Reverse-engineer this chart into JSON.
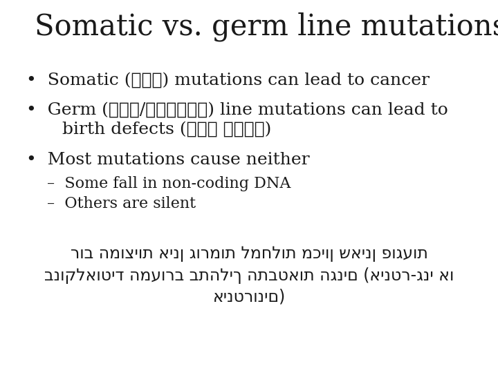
{
  "title": "Somatic vs. germ line mutations",
  "background_color": "#ffffff",
  "text_color": "#1a1a1a",
  "title_fontsize": 30,
  "body_fontsize": 18,
  "sub_fontsize": 16,
  "hebrew_fontsize": 17,
  "bullet1": "•  Somatic (גוף) mutations can lead to cancer",
  "bullet2_line1": "•  Germ (נבט/ראשוני) line mutations can lead to",
  "bullet2_line2": "    birth defects (מום מולד)",
  "bullet3": "•  Most mutations cause neither",
  "sub1": "–  Some fall in non-coding DNA",
  "sub2": "–  Others are silent",
  "heb1": "רוב המוציות אינן גורמות למחלות מכיון שאינן פוגעות",
  "heb2": "בנוקלאוטיד המעורב בתהליך התבטאות הגנים (אינטר-גני או",
  "heb3": "אינטרונים)"
}
